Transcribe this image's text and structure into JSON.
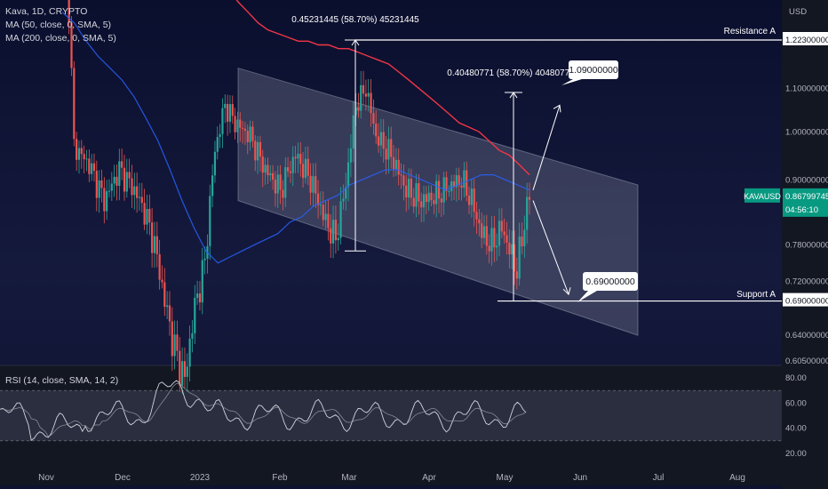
{
  "chart_data": {
    "type": "candlestick",
    "title": "Kava, 1D, CRYPTO",
    "indicators": [
      "MA (50, close, 0, SMA, 5)",
      "MA (200, close, 0, SMA, 5)"
    ],
    "currency": "USD",
    "symbol": "KAVAUSD",
    "last_price": "0.86799745",
    "countdown": "04:56:10",
    "price_ticks": [
      "1.22300000",
      "1.10000000",
      "1.00000000",
      "0.90000000",
      "0.78000000",
      "0.72000000",
      "0.69000000",
      "0.64000000",
      "0.60500000"
    ],
    "price_tick_values": [
      1.223,
      1.1,
      1.0,
      0.9,
      0.78,
      0.72,
      0.69,
      0.64,
      0.605
    ],
    "time_ticks": [
      "Nov",
      "Dec",
      "2023",
      "Feb",
      "Mar",
      "Apr",
      "May",
      "Jun",
      "Jul",
      "Aug"
    ],
    "resistance": {
      "label": "Resistance A",
      "value": 1.223,
      "value_label": "1.22300000"
    },
    "support": {
      "label": "Support A",
      "value": 0.69,
      "value_label": "0.69000000"
    },
    "measure_1": "0.45231445 (58.70%) 45231445",
    "measure_2": "0.40480771 (58.70%) 40480771",
    "target_up": "1.09000000",
    "target_down": "0.69000000",
    "channel": {
      "upper_start": 1.15,
      "upper_end": 0.89,
      "lower_start": 0.86,
      "lower_end": 0.64
    },
    "ma50": [
      1.3,
      1.27,
      1.22,
      1.18,
      1.15,
      1.12,
      1.08,
      1.03,
      0.98,
      0.92,
      0.86,
      0.81,
      0.77,
      0.75,
      0.76,
      0.77,
      0.78,
      0.79,
      0.8,
      0.82,
      0.83,
      0.85,
      0.86,
      0.87,
      0.89,
      0.9,
      0.91,
      0.92,
      0.92,
      0.91,
      0.9,
      0.89,
      0.88,
      0.89,
      0.9,
      0.91,
      0.91,
      0.9,
      0.89,
      0.88
    ],
    "ma200": [
      1.6,
      1.55,
      1.51,
      1.46,
      1.41,
      1.37,
      1.33,
      1.3,
      1.27,
      1.25,
      1.24,
      1.23,
      1.22,
      1.22,
      1.21,
      1.21,
      1.2,
      1.2,
      1.19,
      1.18,
      1.17,
      1.16,
      1.14,
      1.12,
      1.1,
      1.08,
      1.06,
      1.04,
      1.02,
      1.01,
      1.0,
      0.98,
      0.96,
      0.95,
      0.93,
      0.91
    ],
    "rsi": {
      "title": "RSI (14, close, SMA, 14, 2)",
      "ticks": [
        "80.00",
        "60.00",
        "40.00",
        "20.00"
      ],
      "tick_values": [
        80,
        60,
        40,
        20
      ],
      "band": [
        30,
        70
      ]
    }
  }
}
